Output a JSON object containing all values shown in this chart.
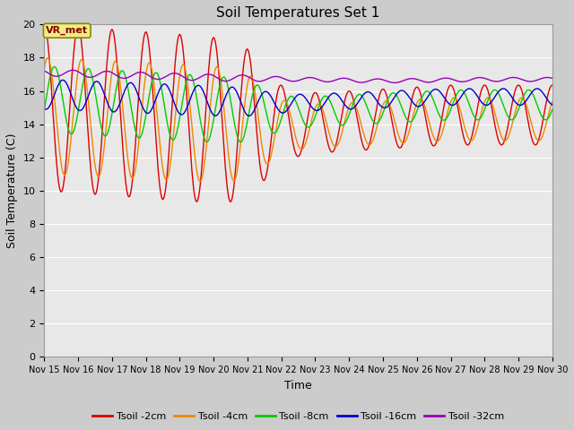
{
  "title": "Soil Temperatures Set 1",
  "xlabel": "Time",
  "ylabel": "Soil Temperature (C)",
  "ylim": [
    0,
    20
  ],
  "yticks": [
    0,
    2,
    4,
    6,
    8,
    10,
    12,
    14,
    16,
    18,
    20
  ],
  "xlim": [
    15,
    30
  ],
  "xtick_labels": [
    "Nov 15",
    "Nov 16",
    "Nov 17",
    "Nov 18",
    "Nov 19",
    "Nov 20",
    "Nov 21",
    "Nov 22",
    "Nov 23",
    "Nov 24",
    "Nov 25",
    "Nov 26",
    "Nov 27",
    "Nov 28",
    "Nov 29",
    "Nov 30"
  ],
  "colors": {
    "tsoil_2cm": "#dd0000",
    "tsoil_4cm": "#ee8800",
    "tsoil_8cm": "#00cc00",
    "tsoil_16cm": "#0000cc",
    "tsoil_32cm": "#9900bb"
  },
  "legend_labels": [
    "Tsoil -2cm",
    "Tsoil -4cm",
    "Tsoil -8cm",
    "Tsoil -16cm",
    "Tsoil -32cm"
  ],
  "annotation_text": "VR_met",
  "fig_bg_color": "#cccccc",
  "plot_bg_color": "#e8e8e8",
  "grid_color": "#ffffff",
  "linewidth": 1.0
}
